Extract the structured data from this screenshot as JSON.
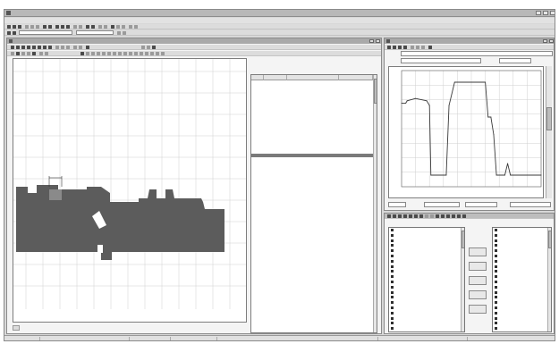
{
  "window": {
    "title": ""
  },
  "menu": {
    "items": [
      {
        "label": ""
      },
      {
        "label": ""
      },
      {
        "label": ""
      },
      {
        "label": ""
      },
      {
        "label": ""
      },
      {
        "label": ""
      },
      {
        "label": ""
      },
      {
        "label": ""
      },
      {
        "label": ""
      },
      {
        "label": ""
      }
    ]
  },
  "colors": {
    "part": "#5c5c5c",
    "selected_row": "#7a7a7a",
    "grid": "#cfcfcf",
    "plot_line": "#3a3a3a"
  },
  "part_view": {
    "title": "",
    "label": "",
    "x_ticks": [
      "",
      "",
      "",
      "",
      "",
      "",
      "",
      "",
      "",
      "",
      "",
      "",
      ""
    ],
    "y_ticks": [
      "",
      "",
      "",
      "",
      "",
      "",
      "",
      "",
      "",
      "",
      ""
    ]
  },
  "table": {
    "columns": [
      {
        "label": ""
      },
      {
        "label": ""
      },
      {
        "label": ""
      },
      {
        "label": ""
      }
    ],
    "rows": [
      {
        "c0": "",
        "c1": "",
        "c2": "",
        "c3": ""
      },
      {
        "c0": "",
        "c1": "",
        "c2": "",
        "c3": ""
      },
      {
        "c0": "",
        "c1": "",
        "c2": "",
        "c3": ""
      },
      {
        "c0": "",
        "c1": "",
        "c2": "",
        "c3": ""
      },
      {
        "c0": "",
        "c1": "",
        "c2": "",
        "c3": ""
      },
      {
        "c0": "",
        "c1": "",
        "c2": "",
        "c3": ""
      },
      {
        "c0": "",
        "c1": "",
        "c2": "",
        "c3": ""
      },
      {
        "c0": "",
        "c1": "",
        "c2": "",
        "c3": ""
      },
      {
        "c0": "",
        "c1": "",
        "c2": "",
        "c3": ""
      },
      {
        "c0": "",
        "c1": "",
        "c2": "",
        "c3": ""
      },
      {
        "c0": "",
        "c1": "",
        "c2": "",
        "c3": ""
      },
      {
        "c0": "",
        "c1": "",
        "c2": "",
        "c3": ""
      },
      {
        "c0": "",
        "c1": "",
        "c2": "",
        "c3": ""
      },
      {
        "c0": "",
        "c1": "",
        "c2": "",
        "c3": ""
      },
      {
        "c0": "",
        "c1": "",
        "c2": "",
        "c3": ""
      },
      {
        "c0": "",
        "c1": "",
        "c2": "",
        "c3": ""
      },
      {
        "c0": "",
        "c1": "",
        "c2": "",
        "c3": ""
      },
      {
        "c0": "",
        "c1": "",
        "c2": "",
        "c3": ""
      },
      {
        "c0": "",
        "c1": "",
        "c2": "",
        "c3": ""
      },
      {
        "c0": "",
        "c1": "",
        "c2": "",
        "c3": ""
      },
      {
        "c0": "",
        "c1": "",
        "c2": "",
        "c3": ""
      },
      {
        "c0": "",
        "c1": "",
        "c2": "",
        "c3": ""
      },
      {
        "c0": "",
        "c1": "",
        "c2": "",
        "c3": ""
      },
      {
        "c0": "",
        "c1": "",
        "c2": "",
        "c3": ""
      },
      {
        "c0": "",
        "c1": "",
        "c2": "",
        "c3": ""
      },
      {
        "c0": "",
        "c1": "",
        "c2": "",
        "c3": ""
      }
    ],
    "selected_index": 19
  },
  "profile_view": {
    "title": "",
    "field1_label": "",
    "field1_value": "",
    "field2_label": "",
    "field2_value": "",
    "field3_label": "",
    "field3_value": "",
    "bottom_fields": [
      "",
      "",
      "",
      ""
    ]
  },
  "chart_data": {
    "type": "line",
    "title": "",
    "xlabel": "",
    "ylabel": "",
    "x": [
      0,
      3,
      4,
      10,
      18,
      20,
      21,
      26,
      30,
      32,
      34,
      38,
      40,
      42,
      43,
      44,
      45,
      50,
      56,
      60,
      62,
      64,
      66,
      68,
      70,
      72,
      74,
      76,
      78,
      80,
      100
    ],
    "series": [
      {
        "values": [
          72,
          72,
          74,
          76,
          74,
          70,
          10,
          10,
          10,
          10,
          70,
          90,
          90,
          90,
          90,
          90,
          90,
          90,
          90,
          90,
          60,
          60,
          45,
          10,
          10,
          10,
          10,
          20,
          10,
          10,
          10
        ]
      }
    ],
    "xlim": [
      0,
      100
    ],
    "ylim": [
      0,
      100
    ],
    "grid": true
  },
  "transfer": {
    "left_header": "",
    "right_header": "",
    "left_items": [
      "",
      "",
      "",
      "",
      "",
      "",
      "",
      "",
      "",
      "",
      "",
      "",
      "",
      "",
      "",
      "",
      "",
      "",
      "",
      ""
    ],
    "right_items": [
      "",
      "",
      "",
      "",
      "",
      "",
      "",
      "",
      "",
      "",
      "",
      "",
      "",
      "",
      "",
      "",
      "",
      "",
      "",
      ""
    ],
    "buttons": [
      "",
      "",
      "",
      "",
      ""
    ]
  },
  "status": {
    "cells": [
      "",
      "",
      "",
      "",
      "",
      "",
      ""
    ]
  }
}
